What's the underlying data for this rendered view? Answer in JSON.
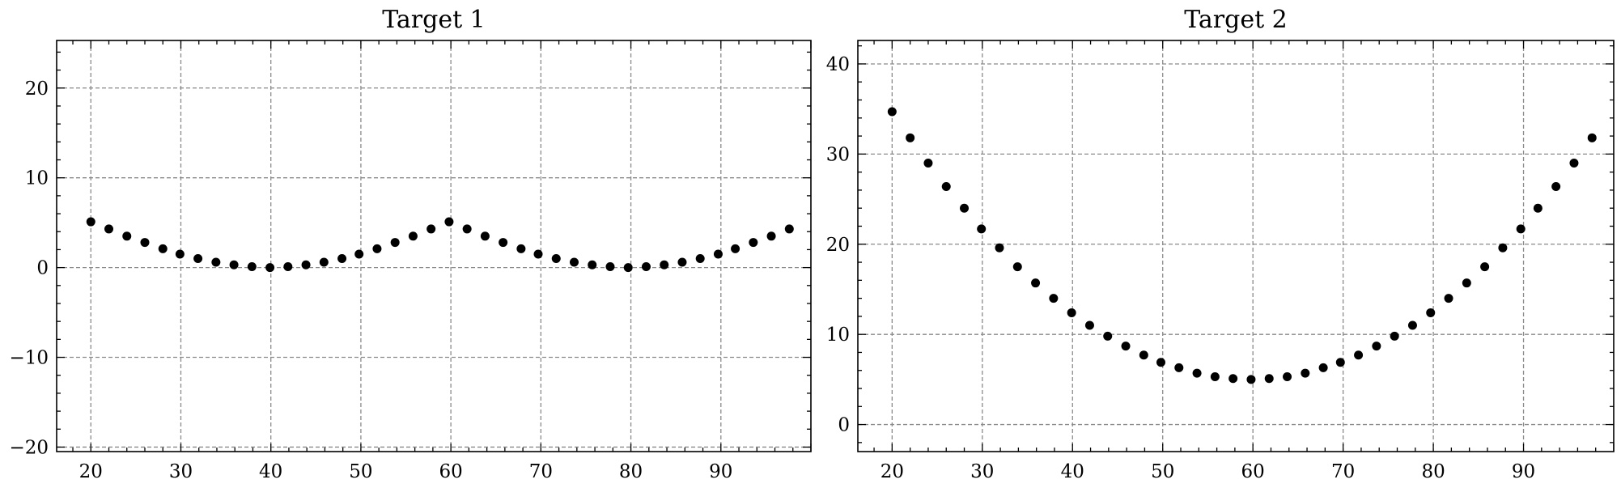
{
  "chart_data": [
    {
      "type": "scatter",
      "title": "Target 1",
      "xlabel": "",
      "ylabel": "",
      "xlim": [
        16.2,
        100.0
      ],
      "ylim": [
        -20.5,
        25.3
      ],
      "xticks": [
        20,
        30,
        40,
        50,
        60,
        70,
        80,
        90
      ],
      "yticks": [
        -20,
        -10,
        0,
        10,
        20
      ],
      "xtick_labels": [
        "20",
        "30",
        "40",
        "50",
        "60",
        "70",
        "80",
        "90"
      ],
      "ytick_labels": [
        "−20",
        "−10",
        "0",
        "10",
        "20"
      ],
      "grid": true,
      "marker_color": "#000000",
      "series": [
        {
          "x": [
            20.0,
            22.0,
            24.0,
            26.0,
            28.0,
            29.9,
            31.9,
            33.9,
            35.9,
            37.9,
            39.9,
            41.9,
            43.9,
            45.9,
            47.9,
            49.8,
            51.8,
            53.8,
            55.8,
            57.8,
            59.8,
            61.8,
            63.8,
            65.8,
            67.8,
            69.7,
            71.7,
            73.7,
            75.7,
            77.7,
            79.7,
            81.7,
            83.7,
            85.7,
            87.7,
            89.7,
            91.6,
            93.6,
            95.6,
            97.6
          ],
          "y": [
            5.1,
            4.3,
            3.5,
            2.8,
            2.1,
            1.5,
            1.0,
            0.6,
            0.3,
            0.1,
            0.0,
            0.1,
            0.3,
            0.6,
            1.0,
            1.5,
            2.1,
            2.8,
            3.5,
            4.3,
            5.1,
            4.3,
            3.5,
            2.8,
            2.1,
            1.5,
            1.0,
            0.6,
            0.3,
            0.1,
            0.0,
            0.1,
            0.3,
            0.6,
            1.0,
            1.5,
            2.1,
            2.8,
            3.5,
            4.3
          ]
        }
      ]
    },
    {
      "type": "scatter",
      "title": "Target 2",
      "xlabel": "",
      "ylabel": "",
      "xlim": [
        16.2,
        100.0
      ],
      "ylim": [
        -3.0,
        42.6
      ],
      "xticks": [
        20,
        30,
        40,
        50,
        60,
        70,
        80,
        90
      ],
      "yticks": [
        0,
        10,
        20,
        30,
        40
      ],
      "xtick_labels": [
        "20",
        "30",
        "40",
        "50",
        "60",
        "70",
        "80",
        "90"
      ],
      "ytick_labels": [
        "0",
        "10",
        "20",
        "30",
        "40"
      ],
      "grid": true,
      "marker_color": "#000000",
      "series": [
        {
          "x": [
            20.0,
            22.0,
            24.0,
            26.0,
            28.0,
            29.9,
            31.9,
            33.9,
            35.9,
            37.9,
            39.9,
            41.9,
            43.9,
            45.9,
            47.9,
            49.8,
            51.8,
            53.8,
            55.8,
            57.8,
            59.8,
            61.8,
            63.8,
            65.8,
            67.8,
            69.7,
            71.7,
            73.7,
            75.7,
            77.7,
            79.7,
            81.7,
            83.7,
            85.7,
            87.7,
            89.7,
            91.6,
            93.6,
            95.6,
            97.6
          ],
          "y": [
            34.7,
            31.8,
            29.0,
            26.4,
            24.0,
            21.7,
            19.6,
            17.5,
            15.7,
            14.0,
            12.4,
            11.0,
            9.8,
            8.7,
            7.7,
            6.9,
            6.3,
            5.7,
            5.3,
            5.1,
            5.0,
            5.1,
            5.3,
            5.7,
            6.3,
            6.9,
            7.7,
            8.7,
            9.8,
            11.0,
            12.4,
            14.0,
            15.7,
            17.5,
            19.6,
            21.7,
            24.0,
            26.4,
            29.0,
            31.8
          ]
        }
      ]
    }
  ]
}
